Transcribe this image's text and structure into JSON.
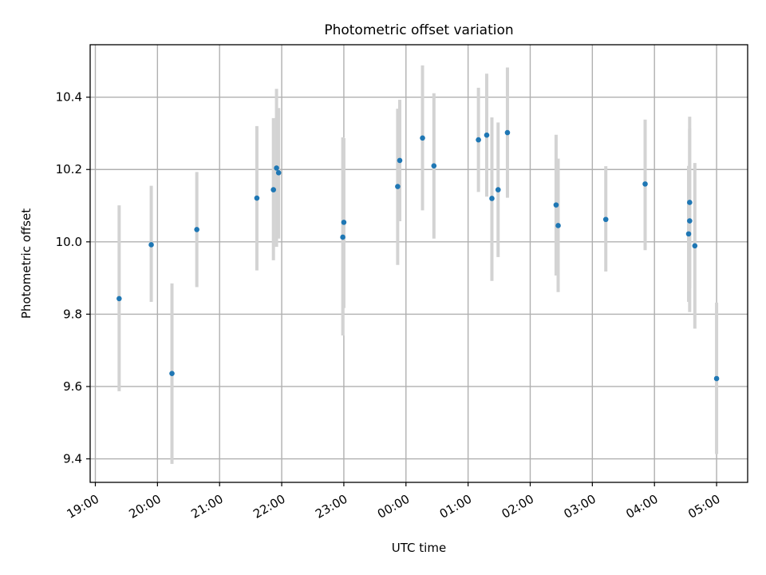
{
  "chart_data": {
    "type": "scatter",
    "title": "Photometric offset variation",
    "xlabel": "UTC time",
    "ylabel": "Photometric offset",
    "x_format": "HH:MM",
    "xlim": [
      "18:55",
      "05:30"
    ],
    "ylim": [
      9.335,
      10.545
    ],
    "xticks": [
      "19:00",
      "20:00",
      "21:00",
      "22:00",
      "23:00",
      "00:00",
      "01:00",
      "02:00",
      "03:00",
      "04:00",
      "05:00"
    ],
    "yticks": [
      9.4,
      9.6,
      9.8,
      10.0,
      10.2,
      10.4
    ],
    "ytick_labels": [
      "9.4",
      "9.6",
      "9.8",
      "10.0",
      "10.2",
      "10.4"
    ],
    "grid": true,
    "marker_color": "#1f77b4",
    "errorbar_color": "#d3d3d3",
    "points": [
      {
        "time": "19:23",
        "y": 9.843,
        "low": 9.587,
        "high": 10.101
      },
      {
        "time": "19:54",
        "y": 9.992,
        "low": 9.834,
        "high": 10.155
      },
      {
        "time": "20:14",
        "y": 9.636,
        "low": 9.386,
        "high": 9.885
      },
      {
        "time": "20:38",
        "y": 10.034,
        "low": 9.875,
        "high": 10.193
      },
      {
        "time": "21:36",
        "y": 10.121,
        "low": 9.921,
        "high": 10.32
      },
      {
        "time": "21:52",
        "y": 10.144,
        "low": 9.949,
        "high": 10.342
      },
      {
        "time": "21:55",
        "y": 10.204,
        "low": 9.986,
        "high": 10.423
      },
      {
        "time": "21:57",
        "y": 10.191,
        "low": 10.009,
        "high": 10.37
      },
      {
        "time": "22:59",
        "y": 10.013,
        "low": 9.741,
        "high": 10.289
      },
      {
        "time": "23:00",
        "y": 10.054,
        "low": 9.817,
        "high": 10.287
      },
      {
        "time": "23:52",
        "y": 10.153,
        "low": 9.936,
        "high": 10.368
      },
      {
        "time": "23:54",
        "y": 10.225,
        "low": 10.057,
        "high": 10.393
      },
      {
        "time": "00:16",
        "y": 10.287,
        "low": 10.087,
        "high": 10.488
      },
      {
        "time": "00:27",
        "y": 10.21,
        "low": 10.009,
        "high": 10.411
      },
      {
        "time": "01:10",
        "y": 10.282,
        "low": 10.138,
        "high": 10.426
      },
      {
        "time": "01:18",
        "y": 10.295,
        "low": 10.125,
        "high": 10.465
      },
      {
        "time": "01:23",
        "y": 10.12,
        "low": 9.892,
        "high": 10.344
      },
      {
        "time": "01:29",
        "y": 10.144,
        "low": 9.958,
        "high": 10.33
      },
      {
        "time": "01:38",
        "y": 10.302,
        "low": 10.122,
        "high": 10.482
      },
      {
        "time": "02:25",
        "y": 10.102,
        "low": 9.907,
        "high": 10.296
      },
      {
        "time": "02:27",
        "y": 10.045,
        "low": 9.861,
        "high": 10.23
      },
      {
        "time": "03:13",
        "y": 10.062,
        "low": 9.918,
        "high": 10.209
      },
      {
        "time": "03:51",
        "y": 10.16,
        "low": 9.977,
        "high": 10.338
      },
      {
        "time": "04:33",
        "y": 10.022,
        "low": 9.834,
        "high": 10.21
      },
      {
        "time": "04:34",
        "y": 10.058,
        "low": 9.806,
        "high": 10.313
      },
      {
        "time": "04:34",
        "y": 10.109,
        "low": 9.872,
        "high": 10.346
      },
      {
        "time": "04:39",
        "y": 9.989,
        "low": 9.76,
        "high": 10.218
      },
      {
        "time": "05:00",
        "y": 9.622,
        "low": 9.413,
        "high": 9.832
      }
    ]
  }
}
